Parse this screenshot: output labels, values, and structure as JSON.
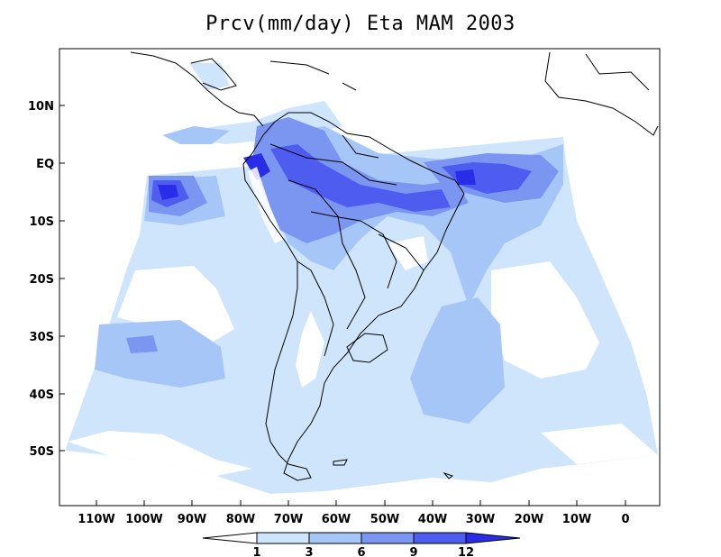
{
  "title": "Prcv(mm/day) Eta MAM 2003",
  "lat_ticks": [
    "10N",
    "EQ",
    "10S",
    "20S",
    "30S",
    "40S",
    "50S"
  ],
  "lon_ticks": [
    "110W",
    "100W",
    "90W",
    "80W",
    "70W",
    "60W",
    "50W",
    "40W",
    "30W",
    "20W",
    "10W",
    "0"
  ],
  "colorbar": {
    "levels": [
      "1",
      "3",
      "6",
      "9",
      "12"
    ],
    "colors": [
      "#ffffff",
      "#cfe5fb",
      "#a7c6f8",
      "#7b96f0",
      "#4e5df0",
      "#2a2de8"
    ]
  },
  "colors": {
    "land_line": "#000000",
    "background": "#ffffff"
  }
}
